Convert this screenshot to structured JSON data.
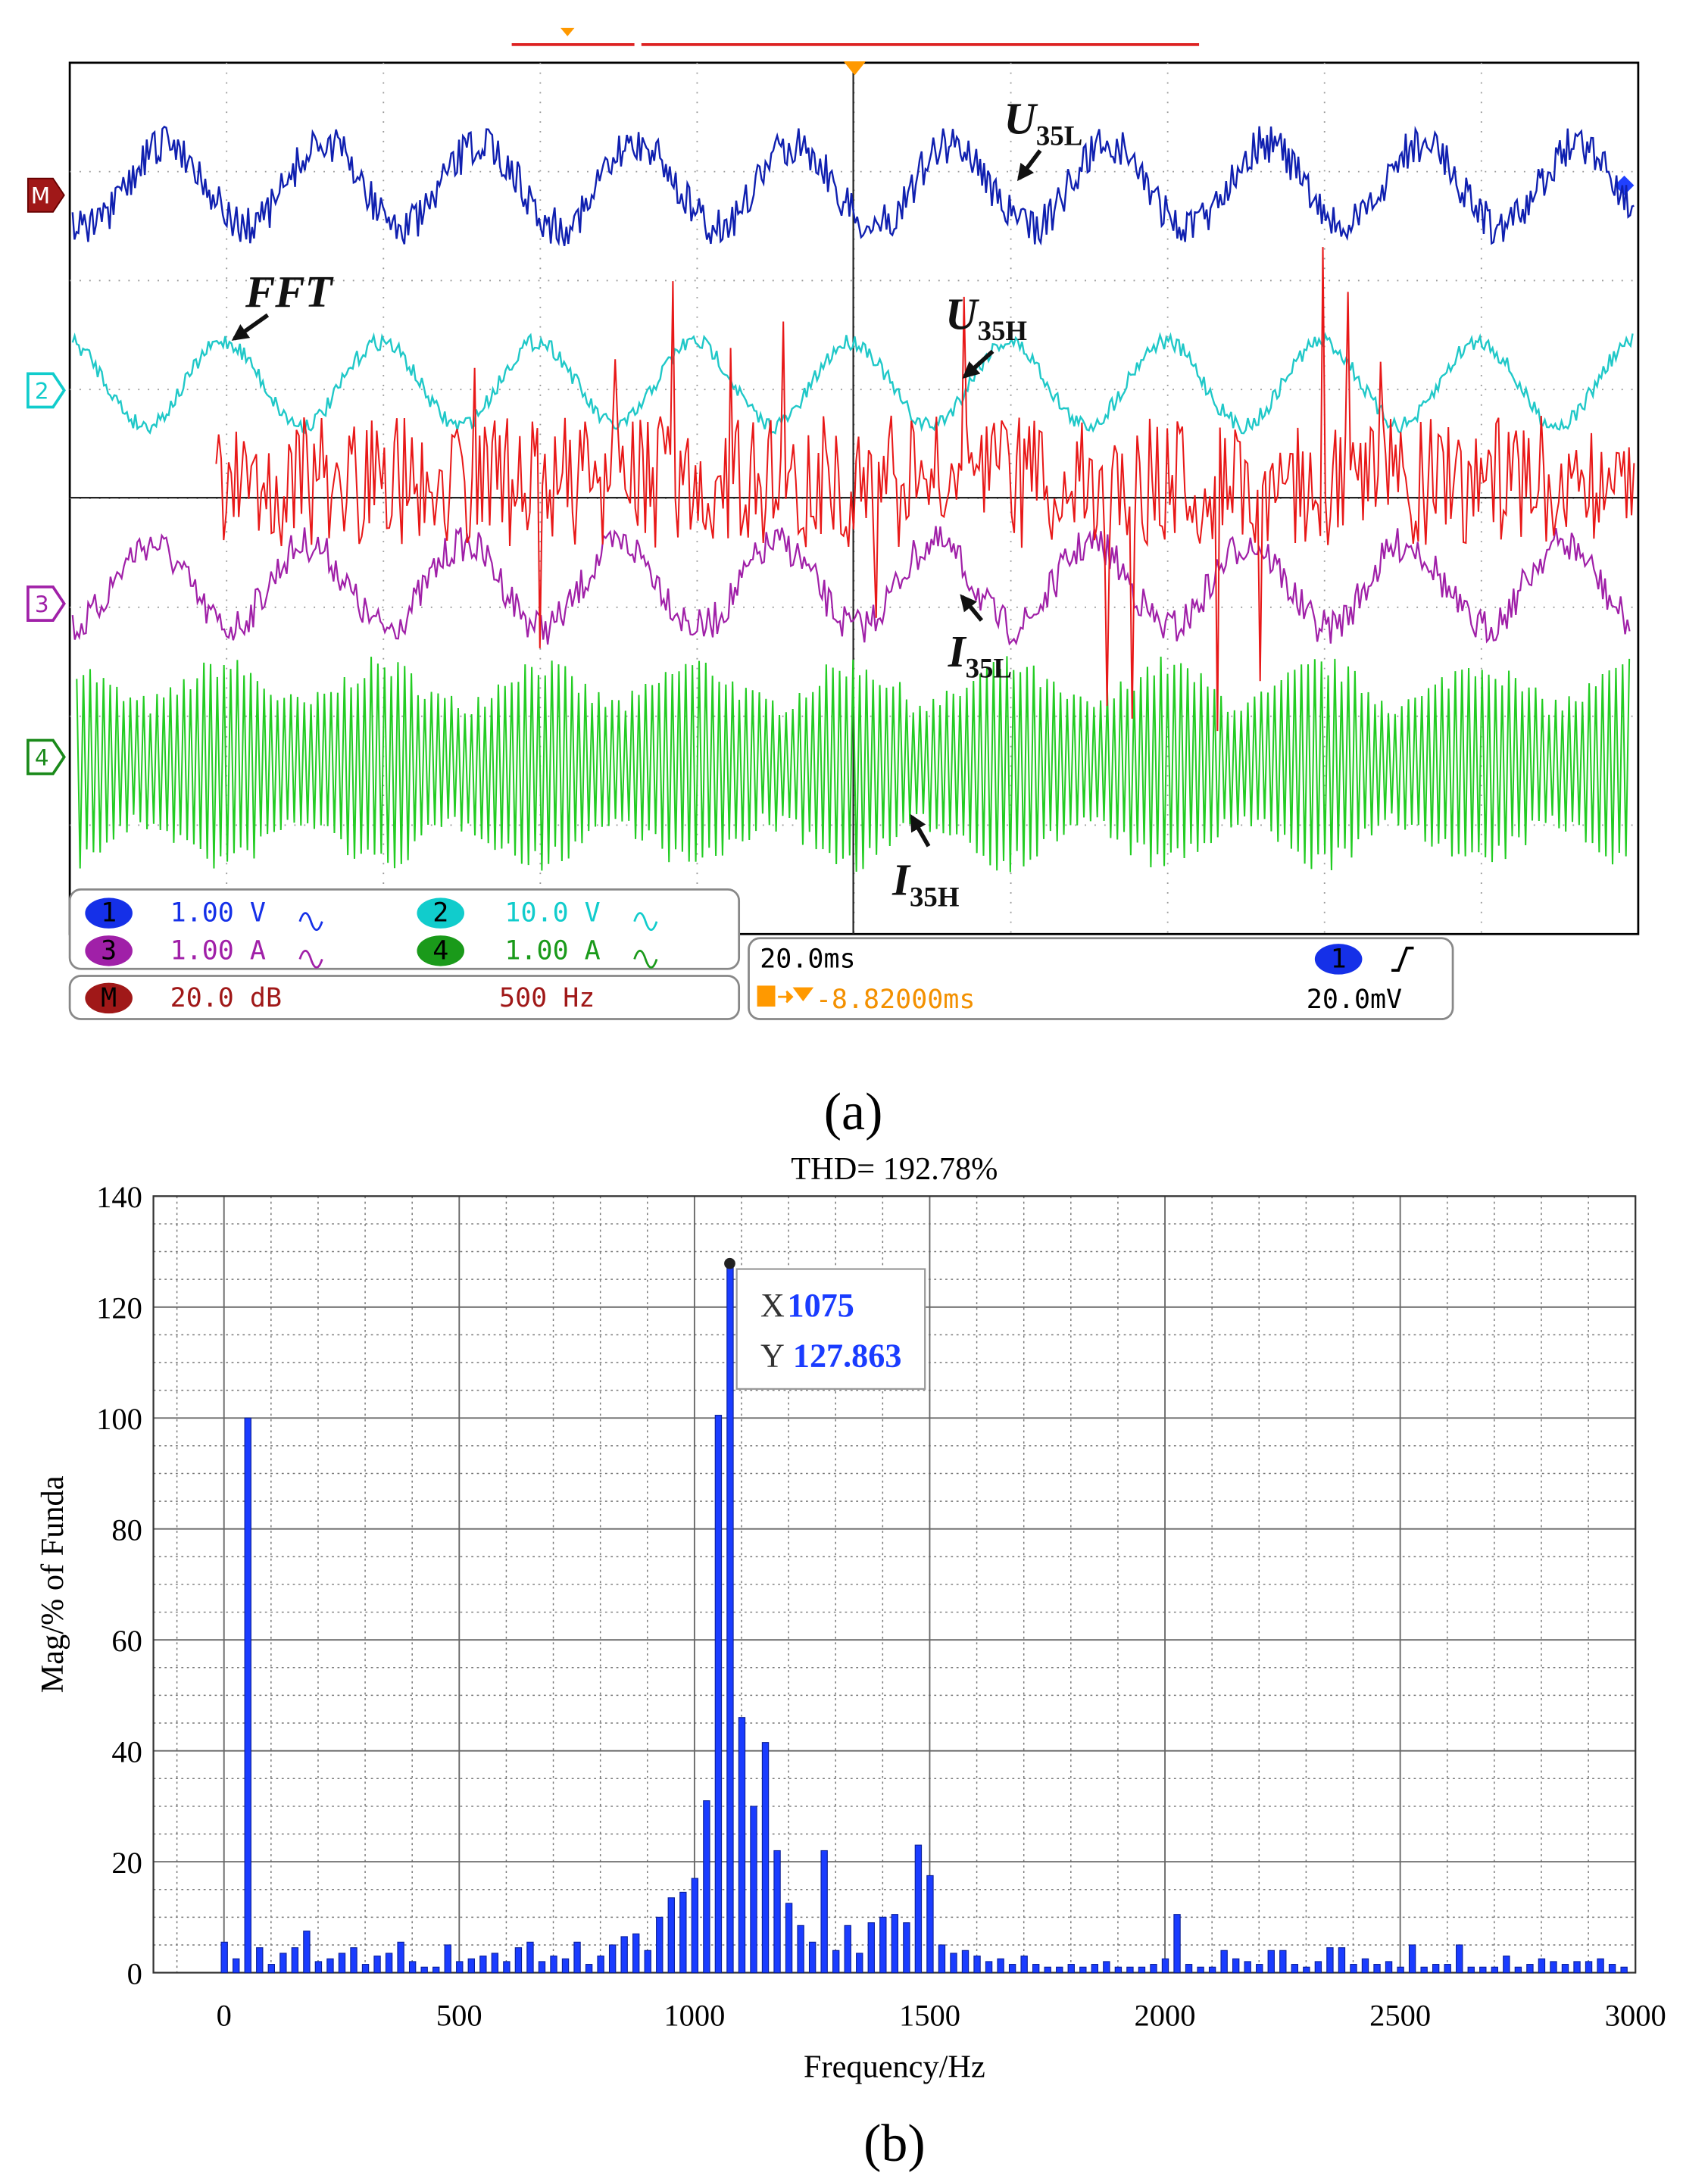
{
  "scope": {
    "channel_markers": [
      "M",
      "2",
      "3",
      "4"
    ],
    "annotations": [
      {
        "main": "FFT"
      },
      {
        "main": "U",
        "sub": "35L"
      },
      {
        "main": "U",
        "sub": "35H"
      },
      {
        "main": "I",
        "sub": "35L"
      },
      {
        "main": "I",
        "sub": "35H"
      }
    ],
    "readouts": {
      "ch1": {
        "id": "1",
        "scale": "1.00 V"
      },
      "ch2": {
        "id": "2",
        "scale": "10.0 V"
      },
      "ch3": {
        "id": "3",
        "scale": "1.00 A"
      },
      "ch4": {
        "id": "4",
        "scale": "1.00 A"
      },
      "math": {
        "id": "M",
        "scale": "20.0 dB",
        "span": "500 Hz"
      },
      "timebase": "20.0ms",
      "trigger_source": "1",
      "trigger_level": "20.0mV",
      "trigger_position": "-8.82000ms"
    },
    "panel_label": "(a)"
  },
  "chart_data": {
    "type": "bar",
    "title": "THD= 192.78%",
    "x_label": "Frequency/Hz",
    "y_label": "Mag/% of Funda",
    "panel_label": "(b)",
    "x": [
      0,
      25,
      50,
      75,
      100,
      125,
      150,
      175,
      200,
      225,
      250,
      275,
      300,
      325,
      350,
      375,
      400,
      425,
      450,
      475,
      500,
      525,
      550,
      575,
      600,
      625,
      650,
      675,
      700,
      725,
      750,
      775,
      800,
      825,
      850,
      875,
      900,
      925,
      950,
      975,
      1000,
      1025,
      1050,
      1075,
      1100,
      1125,
      1150,
      1175,
      1200,
      1225,
      1250,
      1275,
      1300,
      1325,
      1350,
      1375,
      1400,
      1425,
      1450,
      1475,
      1500,
      1525,
      1550,
      1575,
      1600,
      1625,
      1650,
      1675,
      1700,
      1725,
      1750,
      1775,
      1800,
      1825,
      1850,
      1875,
      1900,
      1925,
      1950,
      1975,
      2000,
      2025,
      2050,
      2075,
      2100,
      2125,
      2150,
      2175,
      2200,
      2225,
      2250,
      2275,
      2300,
      2325,
      2350,
      2375,
      2400,
      2425,
      2450,
      2475,
      2500,
      2525,
      2550,
      2575,
      2600,
      2625,
      2650,
      2675,
      2700,
      2725,
      2750,
      2775,
      2800,
      2825,
      2850,
      2875,
      2900,
      2925,
      2950,
      2975
    ],
    "values": [
      5.5,
      2.5,
      100,
      4.5,
      1.5,
      3.5,
      4.5,
      7.5,
      2,
      2.5,
      3.5,
      4.5,
      1.5,
      3,
      3.5,
      5.5,
      2,
      1,
      1,
      5,
      2,
      2.5,
      3,
      3.5,
      2,
      4.5,
      5.5,
      2,
      3,
      2.5,
      5.5,
      1.5,
      3,
      5,
      6.5,
      7,
      4,
      10,
      13.5,
      14.5,
      17,
      31,
      100.5,
      127.863,
      46,
      30,
      41.5,
      22,
      12.5,
      8.5,
      5.5,
      22,
      4,
      8.5,
      3.5,
      9,
      10,
      10.5,
      9,
      23,
      17.5,
      5,
      3.5,
      4,
      3,
      2,
      2.5,
      1.5,
      3,
      1.5,
      1,
      1,
      1.5,
      1,
      1.5,
      2,
      1,
      1,
      1,
      1.5,
      2.5,
      10.5,
      1.5,
      1,
      1,
      4,
      2.5,
      2,
      1.5,
      4,
      4,
      1.5,
      1,
      2,
      4.5,
      4.5,
      1.5,
      2.5,
      1.5,
      2,
      1,
      5,
      1,
      1.5,
      1.5,
      5,
      1,
      1,
      1,
      3,
      1,
      1.5,
      2.5,
      2,
      1.5,
      2,
      2,
      2.5,
      1.5,
      1
    ],
    "color": "#1a3cff",
    "xlim": [
      -150,
      3000
    ],
    "ylim": [
      0,
      140
    ],
    "xticks": [
      0,
      500,
      1000,
      1500,
      2000,
      2500,
      3000
    ],
    "yticks": [
      0,
      20,
      40,
      60,
      80,
      100,
      120,
      140
    ],
    "grid": true,
    "datatip": {
      "x_name": "X",
      "x": 1075,
      "y_name": "Y",
      "y": 127.863
    }
  }
}
